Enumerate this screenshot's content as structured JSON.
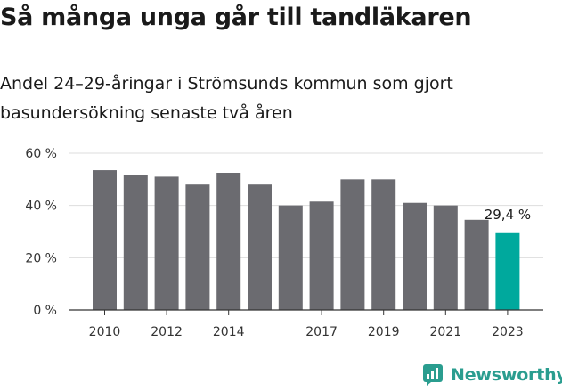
{
  "title": "Så många unga går till tandläkaren",
  "subtitle": "Andel 24–29-åringar i Strömsunds kommun som gjort basundersökning senaste två åren",
  "brand": {
    "name": "Newsworthy",
    "color": "#2a9d8f",
    "icon": "newsworthy-logo-icon"
  },
  "colors": {
    "bar": "#6b6b70",
    "highlight": "#00a99d",
    "grid": "#dddddd",
    "axis": "#333333"
  },
  "chart_data": {
    "type": "bar",
    "categories": [
      "2010",
      "2011",
      "2012",
      "2013",
      "2014",
      "2015",
      "2016",
      "2017",
      "2018",
      "2019",
      "2020",
      "2021",
      "2022",
      "2023"
    ],
    "x_tick_labels": [
      "2010",
      "",
      "2012",
      "",
      "2014",
      "",
      "",
      "2017",
      "",
      "2019",
      "",
      "2021",
      "",
      "2023"
    ],
    "values": [
      53.5,
      51.5,
      51,
      48,
      52.5,
      48,
      40,
      41.5,
      50,
      50,
      41,
      40,
      34.5,
      29.4
    ],
    "highlight_index": 13,
    "data_labels": [
      {
        "index": 13,
        "text": "29,4 %"
      }
    ],
    "y_ticks": [
      0,
      20,
      40,
      60
    ],
    "y_tick_labels": [
      "0 %",
      "20 %",
      "40 %",
      "60 %"
    ],
    "ylim": [
      0,
      60
    ],
    "grid": true,
    "legend": false,
    "xlabel": "",
    "ylabel": ""
  }
}
